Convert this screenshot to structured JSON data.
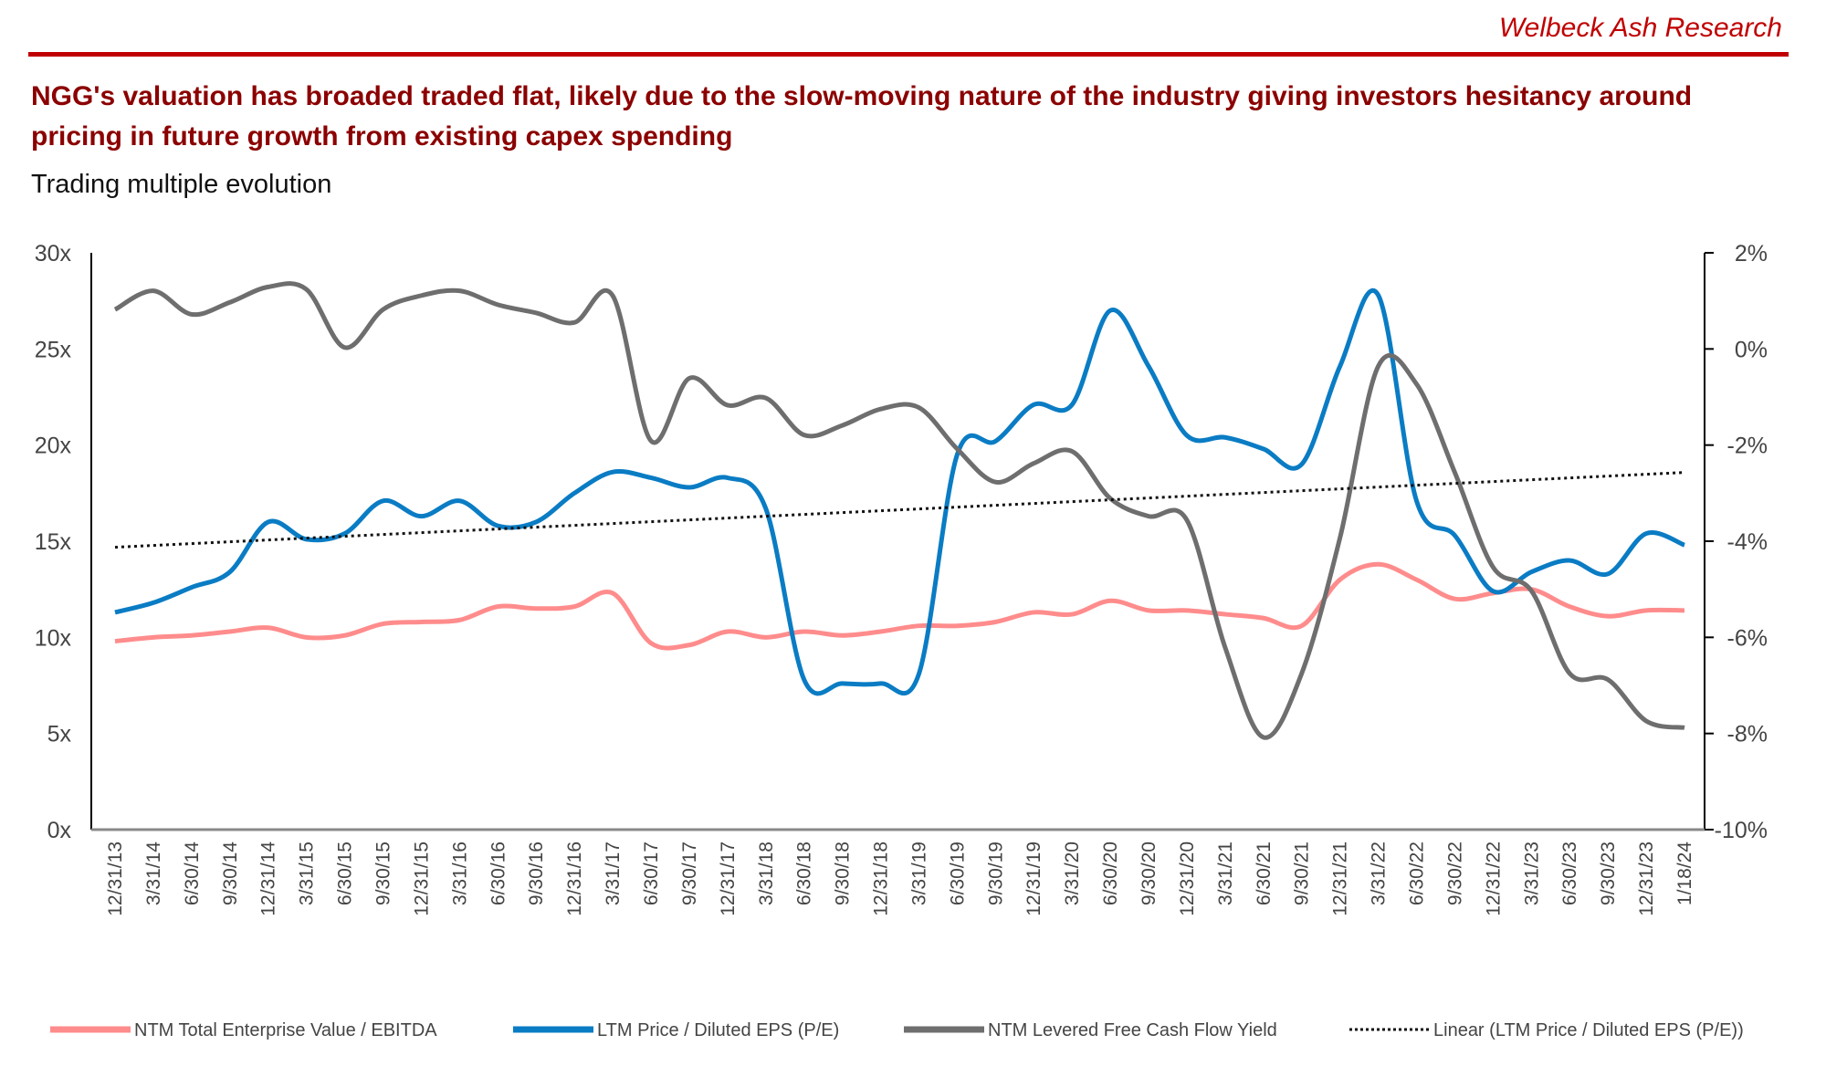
{
  "header": {
    "brand": "Welbeck Ash Research",
    "title": "NGG's valuation has broaded traded flat, likely due to the slow-moving nature of the industry giving investors hesitancy around pricing in future growth from existing capex spending",
    "subtitle": "Trading multiple evolution"
  },
  "colors": {
    "brand": "#c00000",
    "title": "#8b0000",
    "ev_ebitda": "#ff8c8c",
    "pe": "#0a7cc4",
    "fcf": "#6e6e6e",
    "trend": "#111111"
  },
  "chart_data": {
    "type": "line",
    "title": "Trading multiple evolution",
    "grid": false,
    "legend_position": "bottom",
    "y_left": {
      "ticks": [
        "30x",
        "25x",
        "20x",
        "15x",
        "10x",
        "5x",
        "0x"
      ],
      "range": [
        0,
        30
      ],
      "unit": "x"
    },
    "y_right": {
      "ticks": [
        "2%",
        "0%",
        "-2%",
        "-4%",
        "-6%",
        "-8%",
        "-10%"
      ],
      "range": [
        -10,
        2
      ],
      "unit": "%"
    },
    "categories": [
      "12/31/13",
      "3/31/14",
      "6/30/14",
      "9/30/14",
      "12/31/14",
      "3/31/15",
      "6/30/15",
      "9/30/15",
      "12/31/15",
      "3/31/16",
      "6/30/16",
      "9/30/16",
      "12/31/16",
      "3/31/17",
      "6/30/17",
      "9/30/17",
      "12/31/17",
      "3/31/18",
      "6/30/18",
      "9/30/18",
      "12/31/18",
      "3/31/19",
      "6/30/19",
      "9/30/19",
      "12/31/19",
      "3/31/20",
      "6/30/20",
      "9/30/20",
      "12/31/20",
      "3/31/21",
      "6/30/21",
      "9/30/21",
      "12/31/21",
      "3/31/22",
      "6/30/22",
      "9/30/22",
      "12/31/22",
      "3/31/23",
      "6/30/23",
      "9/30/23",
      "12/31/23",
      "1/18/24"
    ],
    "series": [
      {
        "name": "NTM Total Enterprise Value / EBITDA",
        "axis": "left",
        "color": "#ff8c8c",
        "values": [
          9.8,
          10.0,
          10.1,
          10.3,
          10.5,
          10.0,
          10.1,
          10.7,
          10.8,
          10.9,
          11.6,
          11.5,
          11.6,
          12.3,
          9.7,
          9.6,
          10.3,
          10.0,
          10.3,
          10.1,
          10.3,
          10.6,
          10.6,
          10.8,
          11.3,
          11.2,
          11.9,
          11.4,
          11.4,
          11.2,
          11.0,
          10.6,
          13.0,
          13.8,
          13.0,
          12.0,
          12.3,
          12.5,
          11.6,
          11.1,
          11.4,
          11.4
        ]
      },
      {
        "name": "LTM Price / Diluted EPS (P/E)",
        "axis": "left",
        "color": "#0a7cc4",
        "values": [
          11.3,
          11.8,
          12.6,
          13.4,
          16.0,
          15.1,
          15.4,
          17.1,
          16.3,
          17.1,
          15.8,
          16.0,
          17.5,
          18.6,
          18.3,
          17.8,
          18.3,
          16.7,
          7.8,
          7.6,
          7.6,
          8.1,
          19.5,
          20.2,
          22.1,
          22.1,
          27.0,
          24.1,
          20.5,
          20.4,
          19.8,
          19.0,
          24.1,
          27.8,
          17.1,
          15.3,
          12.4,
          13.4,
          14.0,
          13.3,
          15.4,
          14.8
        ]
      },
      {
        "name": "NTM Levered Free Cash Flow Yield",
        "axis": "right",
        "color": "#6e6e6e",
        "values": [
          0.82,
          1.21,
          0.72,
          0.97,
          1.29,
          1.24,
          0.03,
          0.82,
          1.11,
          1.21,
          0.92,
          0.75,
          0.55,
          1.11,
          -1.91,
          -0.61,
          -1.17,
          -1.02,
          -1.79,
          -1.59,
          -1.25,
          -1.22,
          -2.08,
          -2.77,
          -2.38,
          -2.13,
          -3.11,
          -3.48,
          -3.56,
          -6.21,
          -8.08,
          -6.75,
          -3.93,
          -0.36,
          -0.73,
          -2.57,
          -4.54,
          -5.03,
          -6.75,
          -6.88,
          -7.74,
          -7.88
        ]
      },
      {
        "name": "Linear (LTM Price / Diluted EPS (P/E))",
        "axis": "left",
        "color": "#111111",
        "style": "dotted",
        "trend_of": "LTM Price / Diluted EPS (P/E)"
      }
    ]
  }
}
